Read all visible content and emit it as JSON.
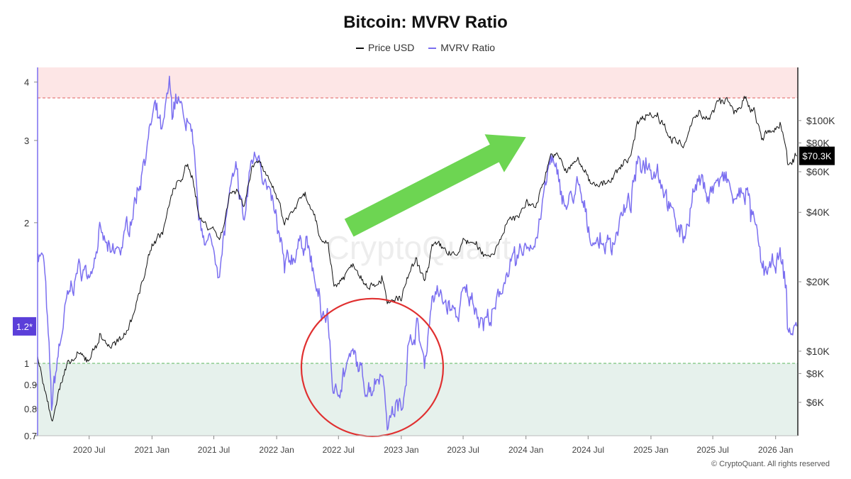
{
  "chart_data": {
    "type": "line",
    "title": "Bitcoin: MVRV Ratio",
    "legend_placement": "top-center",
    "series": [
      {
        "name": "Price USD",
        "axis": "right",
        "color": "#111111",
        "points": [
          [
            "2020-02-01",
            9500
          ],
          [
            "2020-03-13",
            5000
          ],
          [
            "2020-04-01",
            6600
          ],
          [
            "2020-05-01",
            8800
          ],
          [
            "2020-06-01",
            9600
          ],
          [
            "2020-07-01",
            9200
          ],
          [
            "2020-08-01",
            11500
          ],
          [
            "2020-09-01",
            10500
          ],
          [
            "2020-10-01",
            11000
          ],
          [
            "2020-11-01",
            13800
          ],
          [
            "2020-12-01",
            19200
          ],
          [
            "2021-01-01",
            29000
          ],
          [
            "2021-02-01",
            33000
          ],
          [
            "2021-03-01",
            48000
          ],
          [
            "2021-04-13",
            63000
          ],
          [
            "2021-05-01",
            57000
          ],
          [
            "2021-05-20",
            38000
          ],
          [
            "2021-06-01",
            36000
          ],
          [
            "2021-07-01",
            34000
          ],
          [
            "2021-07-20",
            30500
          ],
          [
            "2021-08-15",
            47000
          ],
          [
            "2021-09-06",
            51000
          ],
          [
            "2021-09-28",
            42000
          ],
          [
            "2021-10-20",
            64000
          ],
          [
            "2021-11-10",
            67500
          ],
          [
            "2021-12-01",
            57000
          ],
          [
            "2022-01-01",
            47000
          ],
          [
            "2022-01-24",
            35500
          ],
          [
            "2022-03-01",
            43000
          ],
          [
            "2022-03-28",
            47000
          ],
          [
            "2022-04-15",
            40000
          ],
          [
            "2022-05-10",
            30000
          ],
          [
            "2022-06-01",
            30000
          ],
          [
            "2022-06-18",
            19000
          ],
          [
            "2022-07-15",
            21000
          ],
          [
            "2022-08-15",
            24000
          ],
          [
            "2022-09-15",
            20000
          ],
          [
            "2022-10-15",
            19500
          ],
          [
            "2022-11-05",
            21000
          ],
          [
            "2022-11-21",
            15800
          ],
          [
            "2022-12-15",
            16800
          ],
          [
            "2023-01-01",
            16600
          ],
          [
            "2023-01-20",
            21000
          ],
          [
            "2023-02-15",
            24500
          ],
          [
            "2023-03-10",
            20000
          ],
          [
            "2023-04-01",
            28500
          ],
          [
            "2023-05-01",
            28000
          ],
          [
            "2023-06-15",
            25500
          ],
          [
            "2023-07-01",
            30500
          ],
          [
            "2023-08-01",
            29200
          ],
          [
            "2023-09-01",
            26000
          ],
          [
            "2023-10-01",
            27000
          ],
          [
            "2023-11-01",
            35000
          ],
          [
            "2023-12-01",
            38000
          ],
          [
            "2024-01-01",
            43000
          ],
          [
            "2024-02-01",
            43000
          ],
          [
            "2024-03-14",
            72000
          ],
          [
            "2024-04-01",
            70000
          ],
          [
            "2024-05-01",
            60000
          ],
          [
            "2024-06-01",
            68000
          ],
          [
            "2024-07-05",
            55000
          ],
          [
            "2024-08-05",
            53000
          ],
          [
            "2024-09-06",
            54000
          ],
          [
            "2024-10-01",
            62000
          ],
          [
            "2024-11-01",
            70000
          ],
          [
            "2024-11-22",
            98000
          ],
          [
            "2024-12-17",
            106000
          ],
          [
            "2025-01-20",
            105000
          ],
          [
            "2025-02-10",
            96000
          ],
          [
            "2025-03-01",
            84000
          ],
          [
            "2025-04-08",
            76000
          ],
          [
            "2025-05-01",
            96000
          ],
          [
            "2025-05-22",
            110000
          ],
          [
            "2025-06-22",
            100000
          ],
          [
            "2025-07-14",
            120000
          ],
          [
            "2025-08-14",
            123000
          ],
          [
            "2025-09-01",
            108000
          ],
          [
            "2025-10-06",
            125000
          ],
          [
            "2025-10-20",
            108000
          ],
          [
            "2025-11-01",
            110000
          ],
          [
            "2025-11-21",
            84000
          ],
          [
            "2025-12-15",
            88000
          ],
          [
            "2026-01-14",
            96000
          ],
          [
            "2026-02-01",
            77000
          ],
          [
            "2026-02-06",
            63000
          ],
          [
            "2026-02-20",
            68000
          ],
          [
            "2026-03-04",
            70300
          ]
        ]
      },
      {
        "name": "MVRV Ratio",
        "axis": "left",
        "color": "#7b6ff0",
        "points": [
          [
            "2020-02-01",
            1.75
          ],
          [
            "2020-02-20",
            1.65
          ],
          [
            "2020-03-13",
            0.82
          ],
          [
            "2020-04-01",
            1.05
          ],
          [
            "2020-05-01",
            1.4
          ],
          [
            "2020-06-01",
            1.6
          ],
          [
            "2020-07-01",
            1.55
          ],
          [
            "2020-08-01",
            1.9
          ],
          [
            "2020-09-01",
            1.7
          ],
          [
            "2020-10-01",
            1.75
          ],
          [
            "2020-11-01",
            2.05
          ],
          [
            "2020-12-01",
            2.55
          ],
          [
            "2021-01-08",
            3.5
          ],
          [
            "2021-02-01",
            3.1
          ],
          [
            "2021-02-21",
            3.95
          ],
          [
            "2021-03-01",
            3.5
          ],
          [
            "2021-03-14",
            3.75
          ],
          [
            "2021-04-01",
            3.4
          ],
          [
            "2021-04-13",
            3.3
          ],
          [
            "2021-05-01",
            2.9
          ],
          [
            "2021-05-20",
            1.95
          ],
          [
            "2021-06-01",
            1.9
          ],
          [
            "2021-07-01",
            1.75
          ],
          [
            "2021-07-20",
            1.58
          ],
          [
            "2021-08-15",
            2.3
          ],
          [
            "2021-09-06",
            2.55
          ],
          [
            "2021-09-28",
            2.0
          ],
          [
            "2021-10-20",
            2.75
          ],
          [
            "2021-11-10",
            2.85
          ],
          [
            "2021-12-01",
            2.4
          ],
          [
            "2022-01-01",
            2.0
          ],
          [
            "2022-01-24",
            1.6
          ],
          [
            "2022-03-01",
            1.75
          ],
          [
            "2022-03-28",
            1.85
          ],
          [
            "2022-04-15",
            1.6
          ],
          [
            "2022-05-10",
            1.3
          ],
          [
            "2022-06-01",
            1.25
          ],
          [
            "2022-06-18",
            0.83
          ],
          [
            "2022-07-15",
            0.95
          ],
          [
            "2022-08-15",
            1.05
          ],
          [
            "2022-09-15",
            0.9
          ],
          [
            "2022-10-15",
            0.9
          ],
          [
            "2022-11-05",
            0.98
          ],
          [
            "2022-11-21",
            0.75
          ],
          [
            "2022-12-15",
            0.8
          ],
          [
            "2023-01-01",
            0.8
          ],
          [
            "2023-01-20",
            1.05
          ],
          [
            "2023-02-15",
            1.2
          ],
          [
            "2023-03-10",
            1.0
          ],
          [
            "2023-04-01",
            1.4
          ],
          [
            "2023-05-01",
            1.38
          ],
          [
            "2023-06-15",
            1.25
          ],
          [
            "2023-07-01",
            1.42
          ],
          [
            "2023-08-01",
            1.35
          ],
          [
            "2023-09-01",
            1.22
          ],
          [
            "2023-10-01",
            1.28
          ],
          [
            "2023-11-01",
            1.55
          ],
          [
            "2023-12-01",
            1.65
          ],
          [
            "2024-01-01",
            1.8
          ],
          [
            "2024-02-01",
            1.85
          ],
          [
            "2024-03-14",
            2.75
          ],
          [
            "2024-04-01",
            2.5
          ],
          [
            "2024-05-01",
            2.15
          ],
          [
            "2024-06-01",
            2.4
          ],
          [
            "2024-07-05",
            1.9
          ],
          [
            "2024-08-05",
            1.8
          ],
          [
            "2024-09-06",
            1.8
          ],
          [
            "2024-10-01",
            2.0
          ],
          [
            "2024-11-01",
            2.2
          ],
          [
            "2024-11-22",
            2.65
          ],
          [
            "2024-12-17",
            2.7
          ],
          [
            "2025-01-20",
            2.6
          ],
          [
            "2025-02-10",
            2.35
          ],
          [
            "2025-03-01",
            2.1
          ],
          [
            "2025-04-08",
            1.85
          ],
          [
            "2025-05-01",
            2.25
          ],
          [
            "2025-05-22",
            2.45
          ],
          [
            "2025-06-22",
            2.3
          ],
          [
            "2025-07-14",
            2.45
          ],
          [
            "2025-08-14",
            2.45
          ],
          [
            "2025-09-01",
            2.2
          ],
          [
            "2025-10-06",
            2.35
          ],
          [
            "2025-10-20",
            2.1
          ],
          [
            "2025-11-01",
            2.0
          ],
          [
            "2025-11-21",
            1.6
          ],
          [
            "2025-12-15",
            1.58
          ],
          [
            "2026-01-14",
            1.7
          ],
          [
            "2026-02-01",
            1.45
          ],
          [
            "2026-02-06",
            1.15
          ],
          [
            "2026-02-20",
            1.18
          ],
          [
            "2026-03-04",
            1.2
          ]
        ]
      }
    ],
    "x_axis": {
      "type": "date",
      "range": [
        "2020-02-01",
        "2026-03-07"
      ],
      "ticks": [
        {
          "date": "2020-07-01",
          "label": "2020 Jul"
        },
        {
          "date": "2021-01-01",
          "label": "2021 Jan"
        },
        {
          "date": "2021-07-01",
          "label": "2021 Jul"
        },
        {
          "date": "2022-01-01",
          "label": "2022 Jan"
        },
        {
          "date": "2022-07-01",
          "label": "2022 Jul"
        },
        {
          "date": "2023-01-01",
          "label": "2023 Jan"
        },
        {
          "date": "2023-07-01",
          "label": "2023 Jul"
        },
        {
          "date": "2024-01-01",
          "label": "2024 Jan"
        },
        {
          "date": "2024-07-01",
          "label": "2024 Jul"
        },
        {
          "date": "2025-01-01",
          "label": "2025 Jan"
        },
        {
          "date": "2025-07-01",
          "label": "2025 Jul"
        },
        {
          "date": "2026-01-01",
          "label": "2026 Jan"
        }
      ]
    },
    "y_left": {
      "scale": "log",
      "range": [
        0.7,
        4.3
      ],
      "ticks": [
        {
          "value": 0.7,
          "label": "0.7"
        },
        {
          "value": 0.8,
          "label": "0.8"
        },
        {
          "value": 0.9,
          "label": "0.9"
        },
        {
          "value": 1,
          "label": "1"
        },
        {
          "value": 2,
          "label": "2"
        },
        {
          "value": 3,
          "label": "3"
        },
        {
          "value": 4,
          "label": "4"
        }
      ],
      "current_value": 1.2,
      "current_label": "1.2*",
      "current_color": "#5b3fd9"
    },
    "y_right": {
      "scale": "log",
      "range": [
        4300,
        170000
      ],
      "ticks": [
        {
          "value": 6000,
          "label": "$6K"
        },
        {
          "value": 8000,
          "label": "$8K"
        },
        {
          "value": 10000,
          "label": "$10K"
        },
        {
          "value": 20000,
          "label": "$20K"
        },
        {
          "value": 40000,
          "label": "$40K"
        },
        {
          "value": 60000,
          "label": "$60K"
        },
        {
          "value": 80000,
          "label": "$80K"
        },
        {
          "value": 100000,
          "label": "$100K"
        }
      ],
      "current_value": 70300,
      "current_label": "$70.3K",
      "current_color": "#000000"
    },
    "zones": [
      {
        "name": "overvalued",
        "from": 3.7,
        "to": 4.3,
        "color": "#fde6e6",
        "line_color": "#e06060"
      },
      {
        "name": "undervalued",
        "from": 0.7,
        "to": 1.0,
        "color": "#e6f1ec",
        "line_color": "#5cb85c"
      }
    ],
    "annotations": {
      "circle": {
        "x": "2022-10-08",
        "y": 0.98,
        "color": "#e03030"
      },
      "arrow": {
        "from": [
          "2022-08-01",
          1.95
        ],
        "to": [
          "2024-01-01",
          3.05
        ],
        "color": "#6dd552"
      }
    },
    "watermark": "CryptoQuant",
    "grid": false
  },
  "footer": {
    "copyright": "© CryptoQuant. All rights reserved"
  }
}
